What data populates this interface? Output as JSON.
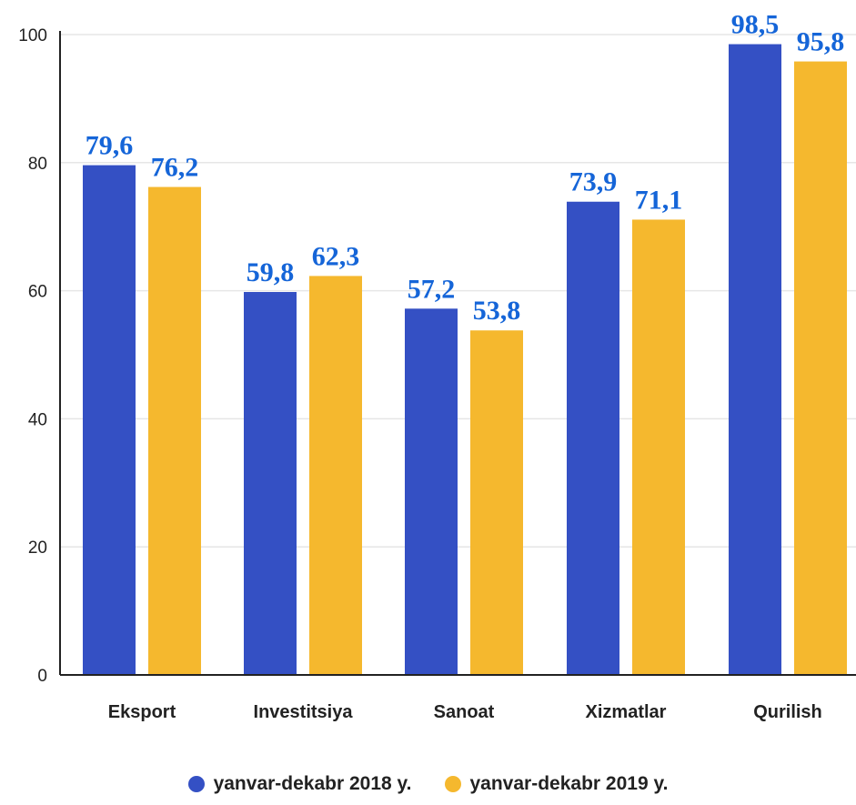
{
  "chart_data": {
    "type": "bar",
    "categories": [
      "Eksport",
      "Investitsiya",
      "Sanoat",
      "Xizmatlar",
      "Qurilish"
    ],
    "series": [
      {
        "name": "yanvar-dekabr 2018 y.",
        "color": "#3450c4",
        "values": [
          79.6,
          59.8,
          57.2,
          73.9,
          98.5
        ],
        "labels": [
          "79,6",
          "59,8",
          "57,2",
          "73,9",
          "98,5"
        ]
      },
      {
        "name": "yanvar-dekabr 2019 y.",
        "color": "#f5b82e",
        "values": [
          76.2,
          62.3,
          53.8,
          71.1,
          95.8
        ],
        "labels": [
          "76,2",
          "62,3",
          "53,8",
          "71,1",
          "95,8"
        ]
      }
    ],
    "ylim": [
      0,
      100
    ],
    "yticks": [
      "0",
      "20",
      "40",
      "60",
      "80",
      "100"
    ],
    "grid": true,
    "legend_position": "bottom",
    "data_label_color": "#1565d8"
  }
}
